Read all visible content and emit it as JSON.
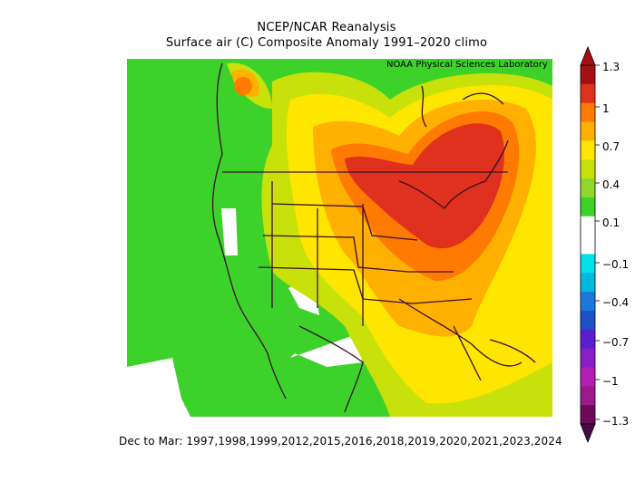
{
  "title_line1": "NCEP/NCAR Reanalysis",
  "title_line2": "Surface air (C) Composite Anomaly 1991–2020 climo",
  "credit": "NOAA Physical Sciences Laboratory",
  "caption": "Dec to Mar: 1997,1998,1999,2012,2015,2016,2018,2019,2020,2021,2023,2024",
  "colorbar": {
    "ticks": [
      "1.3",
      "1",
      "0.7",
      "0.4",
      "0.1",
      "−0.1",
      "−0.4",
      "−0.7",
      "−1",
      "−1.3"
    ],
    "colors": [
      "#a50f15",
      "#e0301e",
      "#ff7a00",
      "#ffb000",
      "#ffe600",
      "#c8e10a",
      "#8fd82a",
      "#3cd22a",
      "#ffffff",
      "#ffffff",
      "#00e0e8",
      "#00b8e0",
      "#1e78dc",
      "#1e50c8",
      "#5a1ed2",
      "#8a1ec8",
      "#b41eb4",
      "#9b1a8c",
      "#6e0a5a"
    ]
  },
  "map_legend": {
    "colors": {
      "white": "#ffffff",
      "green": "#3cd22a",
      "yellow_green": "#c8e10a",
      "yellow": "#ffe600",
      "orange": "#ffb000",
      "dark_orange": "#ff7a00",
      "red_orange": "#e84a1e",
      "red": "#e0301e",
      "border": "#3a0f2a"
    }
  }
}
